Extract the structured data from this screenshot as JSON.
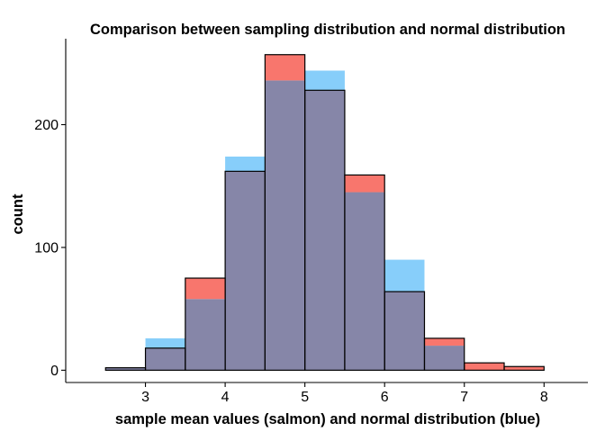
{
  "chart_data": {
    "type": "bar",
    "title": "Comparison between sampling distribution and normal distribution",
    "xlabel": "sample mean values (salmon) and normal distribution (blue)",
    "ylabel": "count",
    "xlim": [
      2.0,
      8.55
    ],
    "ylim": [
      -10,
      270
    ],
    "x_ticks": [
      3,
      4,
      5,
      6,
      7,
      8
    ],
    "y_ticks": [
      0,
      100,
      200
    ],
    "bin_width": 0.5,
    "bin_centers": [
      2.25,
      2.75,
      3.25,
      3.75,
      4.25,
      4.75,
      5.25,
      5.75,
      6.25,
      6.75,
      7.25,
      7.75,
      8.25
    ],
    "series": [
      {
        "color": "#F8766D",
        "values": [
          0,
          2,
          18,
          75,
          162,
          257,
          228,
          159,
          64,
          26,
          6,
          3,
          0
        ]
      },
      {
        "color": "#87CEFA",
        "values": [
          0,
          2,
          26,
          58,
          174,
          236,
          244,
          145,
          90,
          20,
          0,
          0,
          0
        ]
      }
    ],
    "overlap_color": "#8686A8",
    "outline_color": "#000000",
    "grid": false,
    "legend": "none"
  }
}
